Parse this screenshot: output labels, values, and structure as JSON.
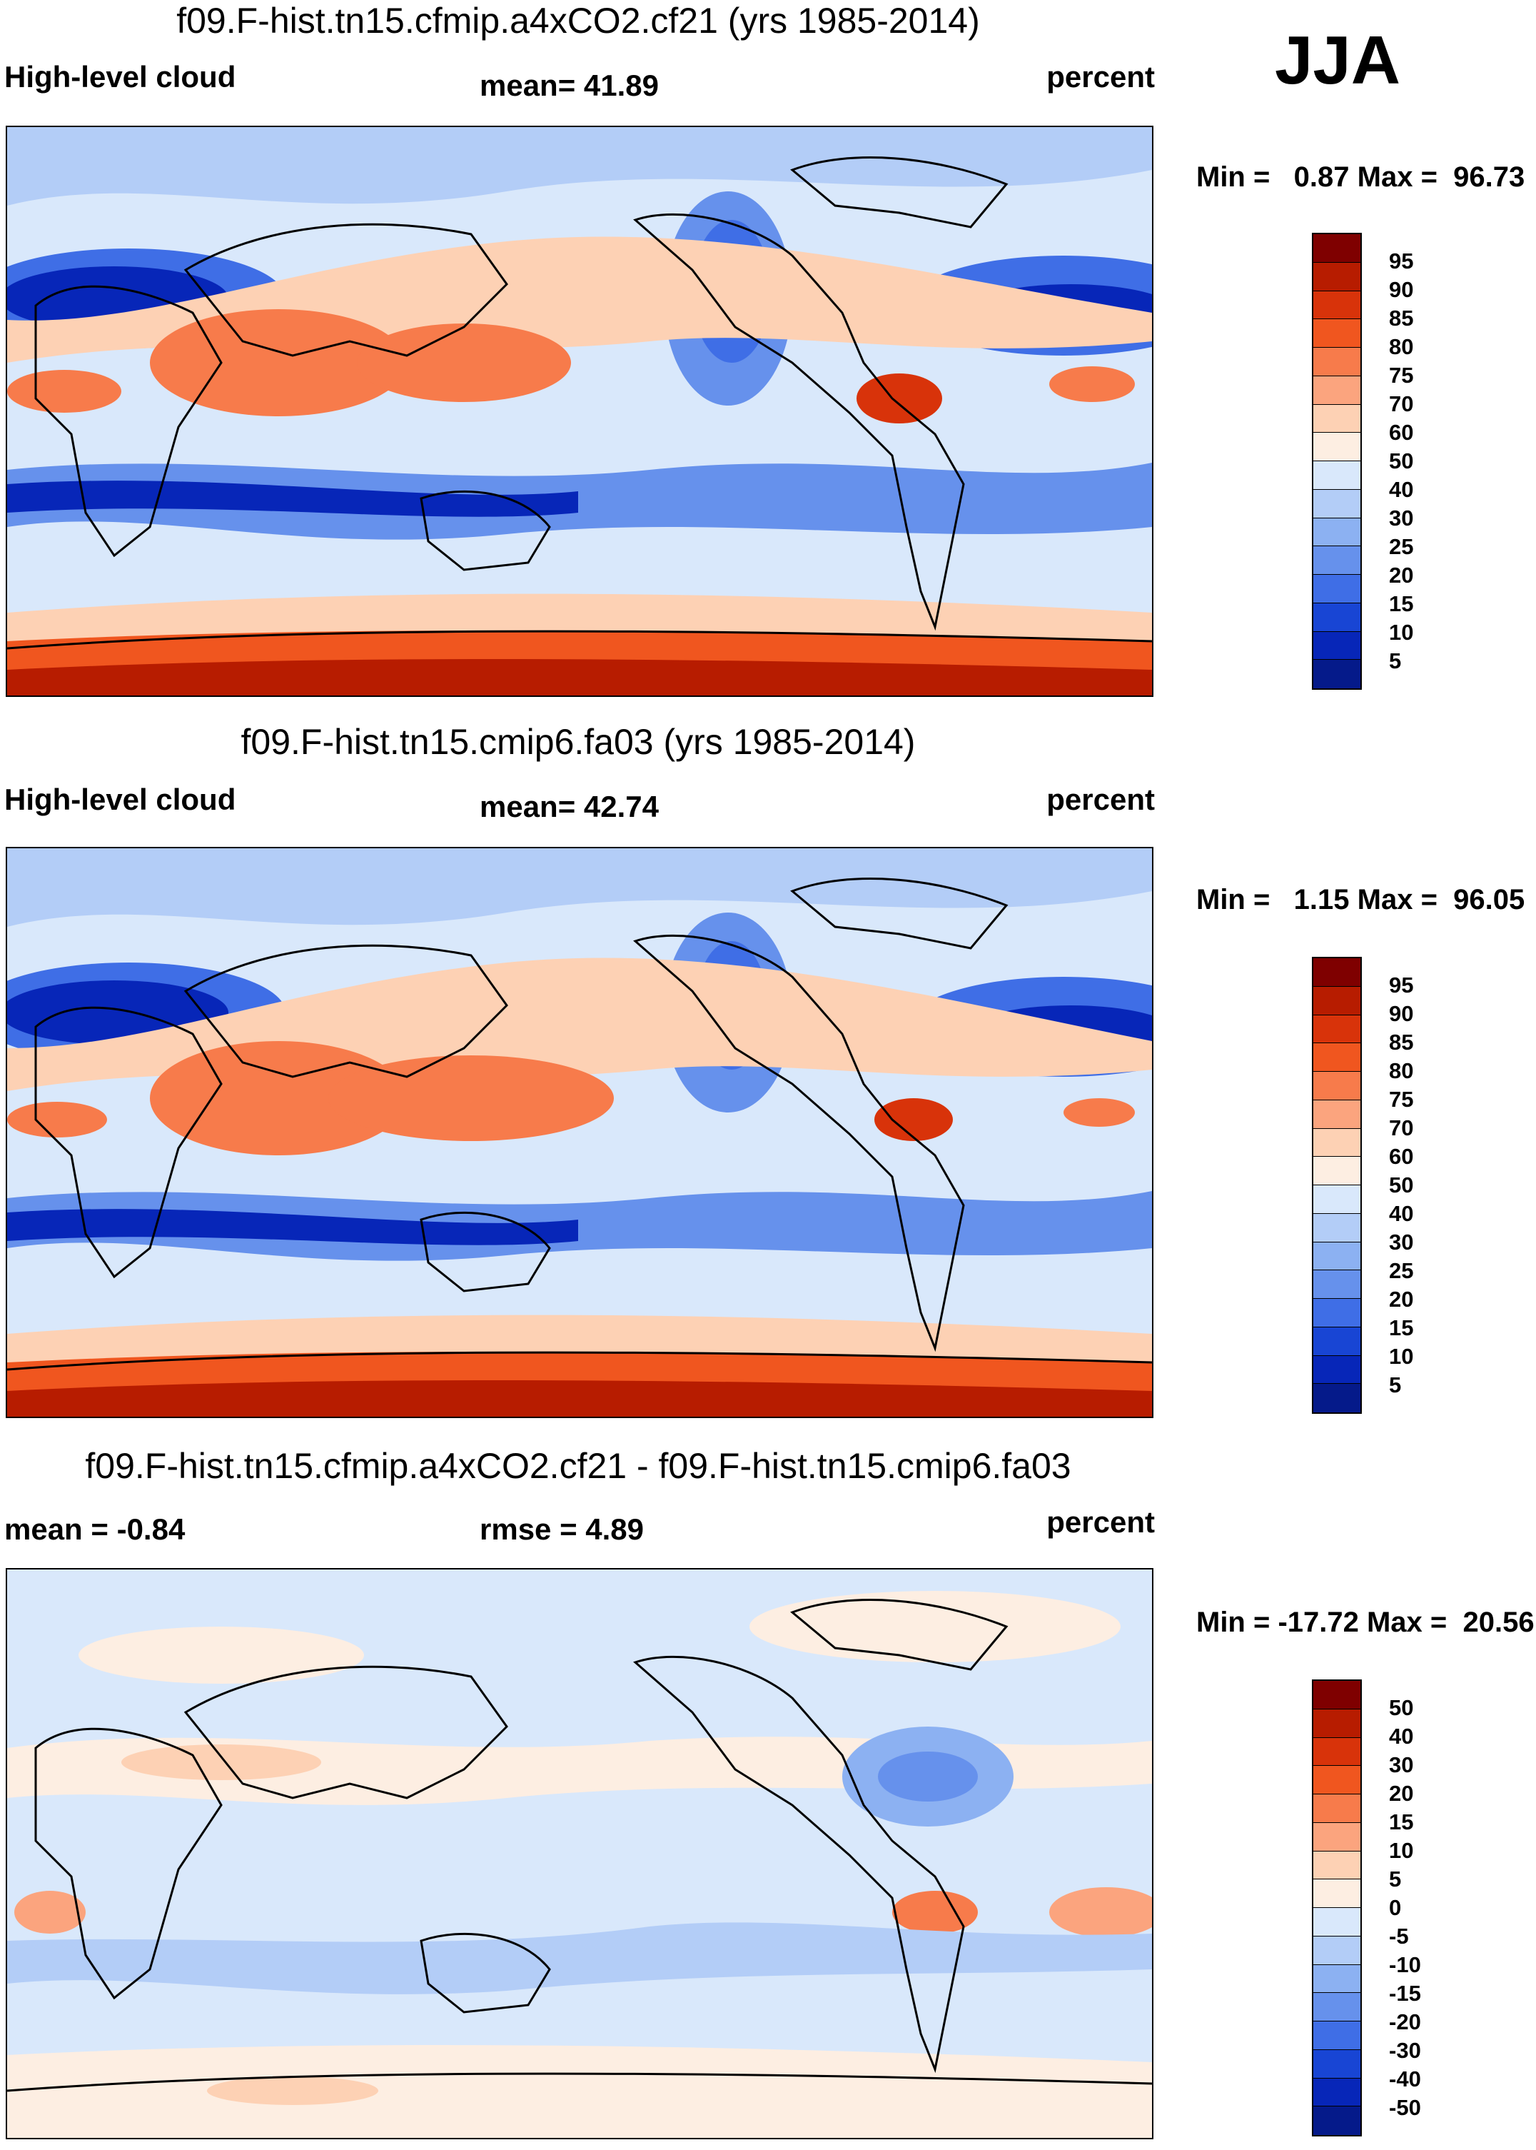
{
  "season": "JJA",
  "units": "percent",
  "colorbar_abs": {
    "labels": [
      "95",
      "90",
      "85",
      "80",
      "75",
      "70",
      "60",
      "50",
      "40",
      "30",
      "25",
      "20",
      "15",
      "10",
      "5"
    ],
    "colors": [
      "#7f0000",
      "#b71c00",
      "#d8330a",
      "#f0561f",
      "#f77b4b",
      "#fba47e",
      "#fdd1b4",
      "#fdeee2",
      "#d9e8fb",
      "#b3cdf7",
      "#8cb1f2",
      "#6691ec",
      "#3f6ee6",
      "#1845d4",
      "#0726b8",
      "#051a8a"
    ]
  },
  "colorbar_diff": {
    "labels": [
      "50",
      "40",
      "30",
      "20",
      "15",
      "10",
      "5",
      "0",
      "-5",
      "-10",
      "-15",
      "-20",
      "-30",
      "-40",
      "-50"
    ],
    "colors": [
      "#7f0000",
      "#b71c00",
      "#d8330a",
      "#f0561f",
      "#f77b4b",
      "#fba47e",
      "#fdd1b4",
      "#fdeee2",
      "#d9e8fb",
      "#b3cdf7",
      "#8cb1f2",
      "#6691ec",
      "#3f6ee6",
      "#1845d4",
      "#0726b8",
      "#051a8a"
    ]
  },
  "panels": [
    {
      "title": "f09.F-hist.tn15.cfmip.a4xCO2.cf21 (yrs 1985-2014)",
      "left_label": "High-level cloud",
      "mid_label": "mean=  41.89",
      "right_label": "percent",
      "minmax": "Min =   0.87 Max =  96.73",
      "kind": "abs"
    },
    {
      "title": "f09.F-hist.tn15.cmip6.fa03 (yrs 1985-2014)",
      "left_label": "High-level cloud",
      "mid_label": "mean=  42.74",
      "right_label": "percent",
      "minmax": "Min =   1.15 Max =  96.05",
      "kind": "abs"
    },
    {
      "title": "f09.F-hist.tn15.cfmip.a4xCO2.cf21 - f09.F-hist.tn15.cmip6.fa03",
      "left_label": "mean =  -0.84",
      "mid_label": "rmse =    4.89",
      "right_label": "percent",
      "minmax": "Min = -17.72 Max =  20.56",
      "kind": "diff"
    }
  ]
}
